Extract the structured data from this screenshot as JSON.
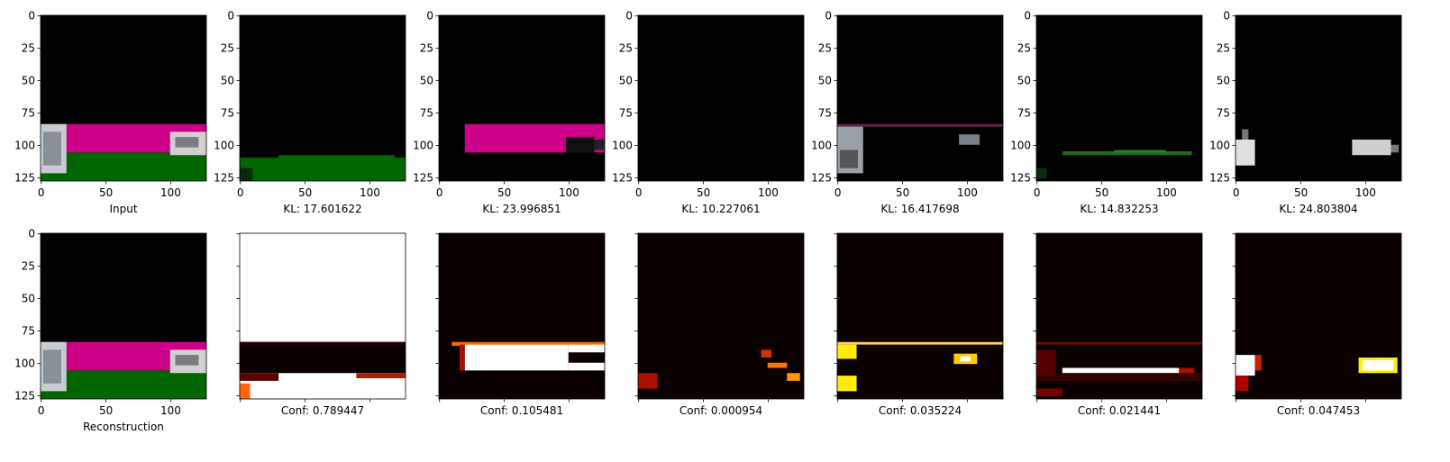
{
  "xlim": [
    -0.5,
    127.5
  ],
  "ylim": [
    127.5,
    -0.5
  ],
  "xticks": [
    0,
    50,
    100
  ],
  "yticks": [
    0,
    25,
    50,
    75,
    100,
    125
  ],
  "rows": [
    [
      {
        "label": "Input",
        "tick_labels": true
      },
      {
        "label": "KL: 17.601622",
        "tick_labels": true
      },
      {
        "label": "KL: 23.996851",
        "tick_labels": true
      },
      {
        "label": "KL: 10.227061",
        "tick_labels": true
      },
      {
        "label": "KL: 16.417698",
        "tick_labels": true
      },
      {
        "label": "KL: 14.832253",
        "tick_labels": true
      },
      {
        "label": "KL: 24.803804",
        "tick_labels": true
      }
    ],
    [
      {
        "label": "Reconstruction",
        "tick_labels": true
      },
      {
        "label": "Conf: 0.789447",
        "tick_labels": false
      },
      {
        "label": "Conf: 0.105481",
        "tick_labels": false
      },
      {
        "label": "Conf: 0.000954",
        "tick_labels": false
      },
      {
        "label": "Conf: 0.035224",
        "tick_labels": false
      },
      {
        "label": "Conf: 0.021441",
        "tick_labels": false
      },
      {
        "label": "Conf: 0.047453",
        "tick_labels": false
      }
    ]
  ]
}
